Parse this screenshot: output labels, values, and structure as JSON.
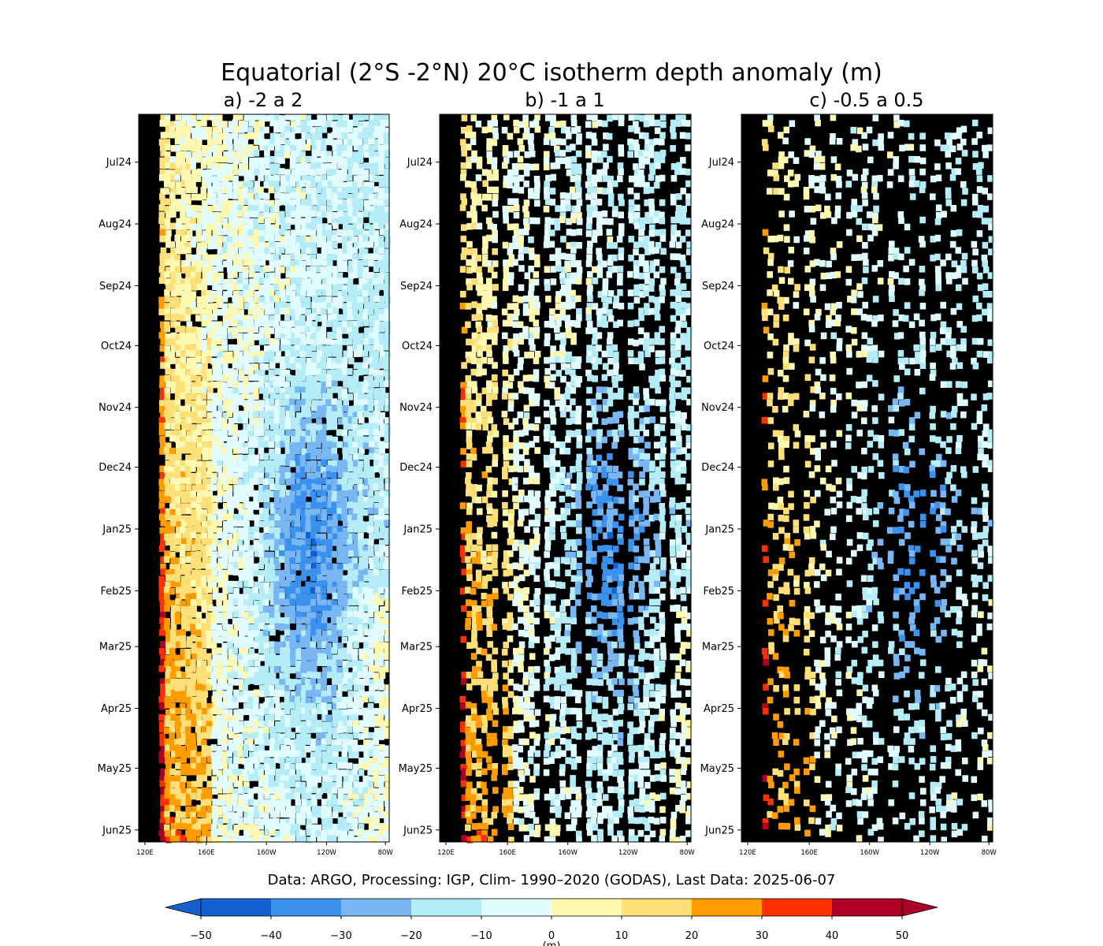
{
  "title": "Equatorial (2°S -2°N) 20°C isotherm depth anomaly (m)",
  "footer": "Data: ARGO, Processing: IGP, Clim- 1990–2020 (GODAS), Last Data: 2025-06-07",
  "chart_data": {
    "type": "heatmap",
    "x_axis": {
      "quantity": "longitude",
      "range": [
        "120E",
        "80W"
      ],
      "ticks": [
        "120E",
        "160E",
        "160W",
        "120W",
        "80W"
      ]
    },
    "y_axis": {
      "quantity": "time",
      "range": [
        "2024-06-07",
        "2025-06-07"
      ],
      "inverted": true,
      "ticks": [
        {
          "label": "Jul24",
          "date": "2024-07-01"
        },
        {
          "label": "Aug24",
          "date": "2024-08-01"
        },
        {
          "label": "Sep24",
          "date": "2024-09-01"
        },
        {
          "label": "Oct24",
          "date": "2024-10-01"
        },
        {
          "label": "Nov24",
          "date": "2024-11-01"
        },
        {
          "label": "Dec24",
          "date": "2024-12-01"
        },
        {
          "label": "Jan25",
          "date": "2025-01-01"
        },
        {
          "label": "Feb25",
          "date": "2025-02-01"
        },
        {
          "label": "Mar25",
          "date": "2025-03-01"
        },
        {
          "label": "Apr25",
          "date": "2025-04-01"
        },
        {
          "label": "May25",
          "date": "2025-05-01"
        },
        {
          "label": "Jun25",
          "date": "2025-06-01"
        }
      ]
    },
    "panels": [
      {
        "label": "a) -2 a 2"
      },
      {
        "label": "b) -1 a 1"
      },
      {
        "label": "c) -0.5 a 0.5"
      }
    ],
    "missing_color": "#000000",
    "colorbar": {
      "levels": [
        -50,
        -40,
        -30,
        -20,
        -10,
        0,
        10,
        20,
        30,
        40,
        50
      ],
      "tick_labels": [
        "−50",
        "−40",
        "−30",
        "−20",
        "−10",
        "0",
        "10",
        "20",
        "30",
        "40",
        "50"
      ],
      "colors": [
        "#1560d0",
        "#3a92ee",
        "#78b6f4",
        "#b4ecf8",
        "#e0fcff",
        "#fff8b0",
        "#ffe078",
        "#ff9d00",
        "#ff3000",
        "#ae0024"
      ],
      "extend": "both",
      "label": "(m)"
    }
  }
}
